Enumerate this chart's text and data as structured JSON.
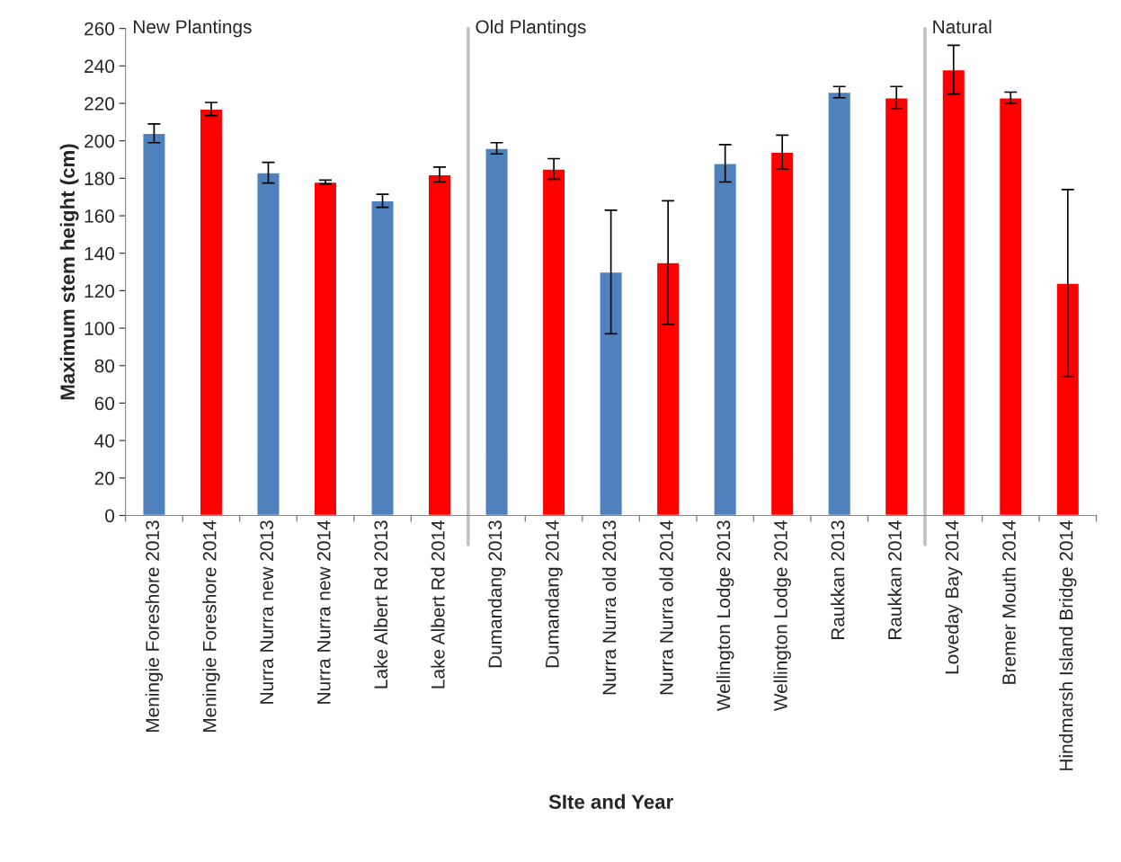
{
  "chart_data": {
    "type": "bar",
    "xlabel": "SIte and Year",
    "ylabel": "Maximum stem height (cm)",
    "categories": [
      "Meningie Foreshore 2013",
      "Meningie Foreshore 2014",
      "Nurra Nurra new 2013",
      "Nurra Nurra new 2014",
      "Lake Albert Rd 2013",
      "Lake Albert Rd 2014",
      "Dumandang 2013",
      "Dumandang 2014",
      "Nurra Nurra old 2013",
      "Nurra Nurra old 2014",
      "Wellington Lodge 2013",
      "Wellington Lodge 2014",
      "Raukkan 2013",
      "Raukkan 2014",
      "Loveday Bay 2014",
      "Bremer Mouth 2014",
      "Hindmarsh Island Bridge 2014"
    ],
    "values": [
      204,
      217,
      183,
      178,
      168,
      182,
      196,
      185,
      130,
      135,
      188,
      194,
      226,
      223,
      238,
      223,
      124
    ],
    "errors": [
      5,
      3.5,
      5.5,
      1,
      3.5,
      4,
      3,
      5.5,
      33,
      33,
      10,
      9,
      3,
      6,
      13,
      3,
      50
    ],
    "colors": [
      "#4f81bd",
      "#ff0000",
      "#4f81bd",
      "#ff0000",
      "#4f81bd",
      "#ff0000",
      "#4f81bd",
      "#ff0000",
      "#4f81bd",
      "#ff0000",
      "#4f81bd",
      "#ff0000",
      "#4f81bd",
      "#ff0000",
      "#ff0000",
      "#ff0000",
      "#ff0000"
    ],
    "ylim": [
      0,
      260
    ],
    "yticks": [
      0,
      20,
      40,
      60,
      80,
      100,
      120,
      140,
      160,
      180,
      200,
      220,
      240,
      260
    ],
    "annotations": [
      "New Plantings",
      "Old Plantings",
      "Natural"
    ],
    "grid": false,
    "legend": false
  }
}
